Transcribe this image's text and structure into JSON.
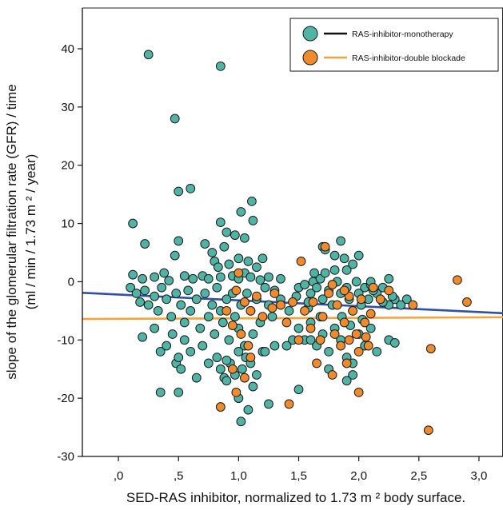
{
  "chart_data": {
    "type": "scatter",
    "xlabel": "SED-RAS inhibitor, normalized to 1.73 m ² body surface.",
    "ylabel_line1": "slope of the glomerular filtration rate  (GFR) / time",
    "ylabel_line2": "(ml / min / 1.73 m ² / year)",
    "xlim": [
      -0.3,
      3.2
    ],
    "ylim": [
      -30,
      47
    ],
    "x_ticks": [
      0,
      0.5,
      1.0,
      1.5,
      2.0,
      2.5,
      3.0
    ],
    "x_tick_labels": [
      ",0",
      ",5",
      "1,0",
      "1,5",
      "2,0",
      "2,5",
      "3,0"
    ],
    "y_ticks": [
      -30,
      -20,
      -10,
      0,
      10,
      20,
      30,
      40
    ],
    "y_tick_labels": [
      "-30",
      "-20",
      "-10",
      "0",
      "10",
      "20",
      "30",
      "40"
    ],
    "legend_position": "top-right",
    "series": [
      {
        "name": "RAS-inhibitor-monotherapy",
        "marker_color": "#4fb3a5",
        "line_color": "#2f4fa8",
        "legend_line_color": "#111111",
        "fit_line": [
          [
            -0.3,
            -1.9
          ],
          [
            3.2,
            -5.4
          ]
        ],
        "points": [
          [
            0.25,
            39
          ],
          [
            0.47,
            28
          ],
          [
            0.85,
            37
          ],
          [
            0.5,
            15.5
          ],
          [
            0.6,
            16
          ],
          [
            0.12,
            10
          ],
          [
            0.22,
            6.5
          ],
          [
            0.5,
            7
          ],
          [
            0.47,
            4.5
          ],
          [
            0.72,
            6.5
          ],
          [
            0.85,
            10.2
          ],
          [
            0.97,
            8
          ],
          [
            1.02,
            12
          ],
          [
            1.12,
            10.5
          ],
          [
            1.11,
            13.8
          ],
          [
            0.9,
            8.5
          ],
          [
            0.88,
            6
          ],
          [
            1.05,
            7.5
          ],
          [
            0.8,
            3.5
          ],
          [
            0.78,
            5
          ],
          [
            0.83,
            2.5
          ],
          [
            0.92,
            3
          ],
          [
            1.0,
            4
          ],
          [
            1.08,
            3.5
          ],
          [
            1.15,
            2.5
          ],
          [
            1.2,
            4
          ],
          [
            1.05,
            1.5
          ],
          [
            0.12,
            1.2
          ],
          [
            0.2,
            0.5
          ],
          [
            0.3,
            0.8
          ],
          [
            0.38,
            1.5
          ],
          [
            0.42,
            0.2
          ],
          [
            0.55,
            1
          ],
          [
            0.62,
            0.5
          ],
          [
            0.7,
            1
          ],
          [
            0.75,
            0.5
          ],
          [
            0.85,
            0.8
          ],
          [
            0.95,
            1
          ],
          [
            1.0,
            0.5
          ],
          [
            1.1,
            0.8
          ],
          [
            1.18,
            0.3
          ],
          [
            1.25,
            0.8
          ],
          [
            1.35,
            0.5
          ],
          [
            0.1,
            -1
          ],
          [
            0.15,
            -2
          ],
          [
            0.18,
            -3.5
          ],
          [
            0.22,
            -1.5
          ],
          [
            0.25,
            -4
          ],
          [
            0.3,
            -2.5
          ],
          [
            0.33,
            -5
          ],
          [
            0.36,
            -1
          ],
          [
            0.4,
            -3
          ],
          [
            0.44,
            -6
          ],
          [
            0.48,
            -2
          ],
          [
            0.52,
            -4
          ],
          [
            0.55,
            -7
          ],
          [
            0.58,
            -1.5
          ],
          [
            0.6,
            -5
          ],
          [
            0.65,
            -3
          ],
          [
            0.68,
            -8
          ],
          [
            0.72,
            -2
          ],
          [
            0.75,
            -6
          ],
          [
            0.78,
            -4
          ],
          [
            0.8,
            -9
          ],
          [
            0.82,
            -1
          ],
          [
            0.85,
            -5
          ],
          [
            0.87,
            -7
          ],
          [
            0.9,
            -3
          ],
          [
            0.92,
            -10
          ],
          [
            0.95,
            -2
          ],
          [
            0.97,
            -6
          ],
          [
            1.0,
            -8
          ],
          [
            1.02,
            -4
          ],
          [
            1.05,
            -11
          ],
          [
            1.07,
            -2
          ],
          [
            1.1,
            -5
          ],
          [
            1.12,
            -9
          ],
          [
            1.15,
            -3
          ],
          [
            1.18,
            -7
          ],
          [
            1.2,
            -12
          ],
          [
            1.22,
            -1
          ],
          [
            1.25,
            -4
          ],
          [
            1.28,
            -6
          ],
          [
            0.2,
            -9.5
          ],
          [
            0.3,
            -8
          ],
          [
            0.35,
            -12
          ],
          [
            0.4,
            -11
          ],
          [
            0.45,
            -9
          ],
          [
            0.48,
            -14
          ],
          [
            0.5,
            -13
          ],
          [
            0.52,
            -15
          ],
          [
            0.55,
            -10
          ],
          [
            0.6,
            -12
          ],
          [
            0.65,
            -16.5
          ],
          [
            0.7,
            -11
          ],
          [
            0.75,
            -14
          ],
          [
            0.82,
            -13
          ],
          [
            0.85,
            -15
          ],
          [
            0.88,
            -16.5
          ],
          [
            0.9,
            -17
          ],
          [
            0.93,
            -14
          ],
          [
            0.97,
            -16
          ],
          [
            1.0,
            -12
          ],
          [
            1.03,
            -15
          ],
          [
            1.06,
            -13
          ],
          [
            1.1,
            -14
          ],
          [
            1.15,
            -16
          ],
          [
            1.22,
            -12
          ],
          [
            1.3,
            -11
          ],
          [
            0.35,
            -19
          ],
          [
            0.5,
            -19
          ],
          [
            1.0,
            -20
          ],
          [
            1.02,
            -24
          ],
          [
            1.08,
            -22
          ],
          [
            0.9,
            -13.5
          ],
          [
            1.12,
            -18
          ],
          [
            1.5,
            -1
          ],
          [
            1.55,
            -0.5
          ],
          [
            1.6,
            -2
          ],
          [
            1.62,
            0
          ],
          [
            1.65,
            -1
          ],
          [
            1.68,
            0.5
          ],
          [
            1.7,
            -3
          ],
          [
            1.72,
            1.5
          ],
          [
            1.75,
            -1.5
          ],
          [
            1.78,
            -4
          ],
          [
            1.8,
            2
          ],
          [
            1.82,
            0
          ],
          [
            1.85,
            -2
          ],
          [
            1.88,
            4
          ],
          [
            1.9,
            -1
          ],
          [
            1.92,
            -3
          ],
          [
            1.95,
            -5
          ],
          [
            1.98,
            0
          ],
          [
            2.0,
            -2
          ],
          [
            2.02,
            -4
          ],
          [
            2.05,
            -1
          ],
          [
            2.08,
            -3
          ],
          [
            2.1,
            -0.5
          ],
          [
            2.15,
            -2
          ],
          [
            2.2,
            -1
          ],
          [
            2.25,
            0.5
          ],
          [
            2.3,
            -3
          ],
          [
            2.35,
            -4
          ],
          [
            1.7,
            6
          ],
          [
            1.72,
            5.5
          ],
          [
            1.8,
            4.5
          ],
          [
            1.85,
            7
          ],
          [
            1.9,
            2
          ],
          [
            1.95,
            3
          ],
          [
            2.0,
            4.5
          ],
          [
            1.5,
            -8
          ],
          [
            1.55,
            -10
          ],
          [
            1.6,
            -7
          ],
          [
            1.65,
            -11
          ],
          [
            1.7,
            -9
          ],
          [
            1.75,
            -12
          ],
          [
            1.8,
            -8
          ],
          [
            1.85,
            -10
          ],
          [
            1.9,
            -13
          ],
          [
            1.95,
            -14
          ],
          [
            2.0,
            -9
          ],
          [
            2.05,
            -11
          ],
          [
            2.1,
            -8
          ],
          [
            2.15,
            -12
          ],
          [
            2.25,
            -10
          ],
          [
            2.3,
            -10.5
          ],
          [
            1.45,
            -10
          ],
          [
            1.4,
            -11
          ],
          [
            1.75,
            -15
          ],
          [
            1.95,
            -16
          ],
          [
            1.9,
            -17
          ],
          [
            1.5,
            -18.5
          ],
          [
            1.25,
            -21
          ],
          [
            2.25,
            -4
          ],
          [
            2.28,
            -2.5
          ],
          [
            2.4,
            -3
          ],
          [
            1.3,
            -1.5
          ],
          [
            1.35,
            -3
          ],
          [
            1.42,
            -5
          ],
          [
            1.48,
            -2.5
          ],
          [
            1.58,
            -4.5
          ],
          [
            1.68,
            -6
          ],
          [
            1.58,
            -3.5
          ],
          [
            1.6,
            -10
          ],
          [
            2.1,
            0
          ],
          [
            2.12,
            -1.5
          ],
          [
            2.2,
            -3.5
          ],
          [
            1.63,
            1.5
          ],
          [
            1.86,
            -6
          ],
          [
            1.93,
            -7.5
          ],
          [
            2.03,
            -6.5
          ]
        ]
      },
      {
        "name": "RAS-inhibitor-double blockade",
        "marker_color": "#ef8b2c",
        "line_color": "#f2a33a",
        "legend_line_color": "#f2a33a",
        "fit_line": [
          [
            -0.3,
            -6.4
          ],
          [
            3.2,
            -6.1
          ]
        ],
        "points": [
          [
            0.98,
            -1.5
          ],
          [
            1.0,
            1.5
          ],
          [
            1.05,
            -3.5
          ],
          [
            1.1,
            -5
          ],
          [
            1.15,
            -2.5
          ],
          [
            1.2,
            -6
          ],
          [
            1.28,
            -4.5
          ],
          [
            1.3,
            -2
          ],
          [
            0.9,
            -5
          ],
          [
            0.95,
            -7.5
          ],
          [
            1.02,
            -9
          ],
          [
            1.08,
            -11
          ],
          [
            0.85,
            -21.5
          ],
          [
            0.98,
            -19
          ],
          [
            1.05,
            -16.5
          ],
          [
            1.1,
            -13
          ],
          [
            0.95,
            -15
          ],
          [
            1.45,
            -3.5
          ],
          [
            1.52,
            3.5
          ],
          [
            1.55,
            -5
          ],
          [
            1.6,
            -8
          ],
          [
            1.65,
            -14
          ],
          [
            1.7,
            -6
          ],
          [
            1.72,
            6
          ],
          [
            1.75,
            -2
          ],
          [
            1.78,
            -16
          ],
          [
            1.8,
            -9
          ],
          [
            1.82,
            -4
          ],
          [
            1.85,
            -11
          ],
          [
            1.88,
            -7
          ],
          [
            1.9,
            -14
          ],
          [
            1.92,
            -2.5
          ],
          [
            1.95,
            -5
          ],
          [
            1.98,
            -9
          ],
          [
            2.0,
            -12
          ],
          [
            2.02,
            -3
          ],
          [
            2.05,
            -7
          ],
          [
            2.08,
            -11
          ],
          [
            2.1,
            -5.5
          ],
          [
            2.0,
            -19
          ],
          [
            1.42,
            -21
          ],
          [
            1.5,
            -10
          ],
          [
            1.4,
            -7
          ],
          [
            1.35,
            -4
          ],
          [
            2.12,
            -1
          ],
          [
            2.18,
            -3
          ],
          [
            2.25,
            -1.5
          ],
          [
            2.45,
            -4
          ],
          [
            2.6,
            -11.5
          ],
          [
            2.58,
            -25.5
          ],
          [
            2.82,
            0.3
          ],
          [
            2.9,
            -3.5
          ],
          [
            1.62,
            -3.5
          ],
          [
            1.68,
            -10
          ],
          [
            1.78,
            -0.5
          ],
          [
            1.88,
            -1.5
          ],
          [
            1.92,
            -10
          ],
          [
            2.06,
            -9.5
          ]
        ]
      }
    ]
  }
}
